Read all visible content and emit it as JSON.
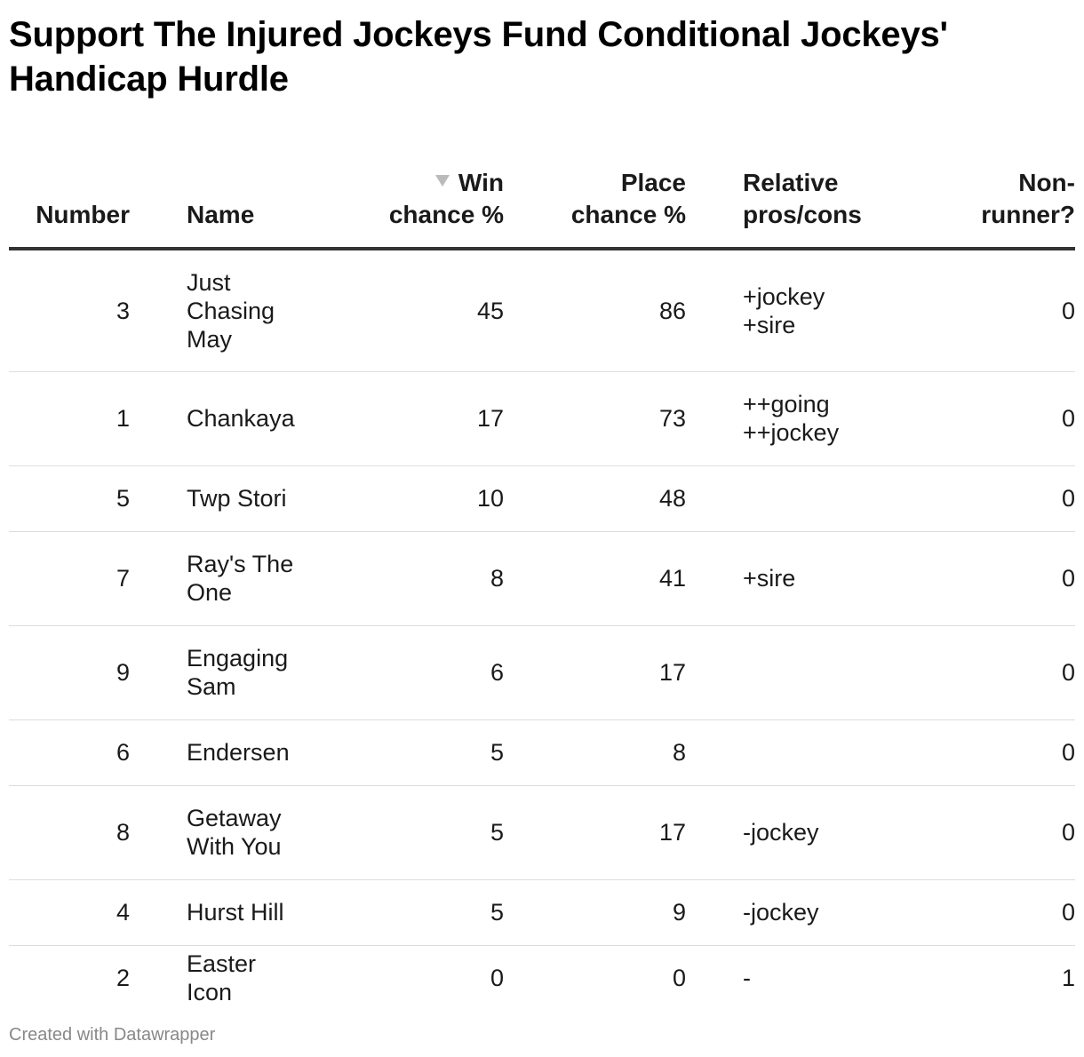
{
  "chart_data": {
    "type": "table",
    "title": "Support The Injured Jockeys Fund Conditional Jockeys' Handicap Hurdle",
    "columns": [
      {
        "label": "Number"
      },
      {
        "label": "Name"
      },
      {
        "label": "Win chance %",
        "sorted": "descending"
      },
      {
        "label": "Place chance %"
      },
      {
        "label": "Relative pros/cons"
      },
      {
        "label": "Non-runner?"
      }
    ],
    "rows": [
      {
        "number": "3",
        "name": "Just Chasing May",
        "win": "45",
        "place": "86",
        "pros": [
          "+jockey",
          "+sire"
        ],
        "nonrunner": "0",
        "height": 138
      },
      {
        "number": "1",
        "name": "Chankaya",
        "win": "17",
        "place": "73",
        "pros": [
          "++going",
          "++jockey"
        ],
        "nonrunner": "0",
        "height": 106
      },
      {
        "number": "5",
        "name": "Twp Stori",
        "win": "10",
        "place": "48",
        "pros": [],
        "nonrunner": "0",
        "height": 74
      },
      {
        "number": "7",
        "name": "Ray's The One",
        "win": "8",
        "place": "41",
        "pros": [
          "+sire"
        ],
        "nonrunner": "0",
        "height": 106
      },
      {
        "number": "9",
        "name": "Engaging Sam",
        "win": "6",
        "place": "17",
        "pros": [],
        "nonrunner": "0",
        "height": 106
      },
      {
        "number": "6",
        "name": "Endersen",
        "win": "5",
        "place": "8",
        "pros": [],
        "nonrunner": "0",
        "height": 74
      },
      {
        "number": "8",
        "name": "Getaway With You",
        "win": "5",
        "place": "17",
        "pros": [
          "-jockey"
        ],
        "nonrunner": "0",
        "height": 106
      },
      {
        "number": "4",
        "name": "Hurst Hill",
        "win": "5",
        "place": "9",
        "pros": [
          "-jockey"
        ],
        "nonrunner": "0",
        "height": 74
      },
      {
        "number": "2",
        "name": "Easter Icon",
        "win": "0",
        "place": "0",
        "pros": [
          "-"
        ],
        "nonrunner": "1",
        "height": 74
      }
    ]
  },
  "header": {
    "number": "Number",
    "name": "Name",
    "win_line1": "Win",
    "win_line2": "chance %",
    "place_line1": "Place",
    "place_line2": "chance %",
    "pros_line1": "Relative",
    "pros_line2": "pros/cons",
    "nr_line1": "Non-",
    "nr_line2": "runner?"
  },
  "footer": "Created with Datawrapper",
  "colors": {
    "header_rule": "#333333",
    "row_rule": "#dddddd",
    "footer_text": "#888888",
    "sort_arrow": "#bbbbbb"
  }
}
